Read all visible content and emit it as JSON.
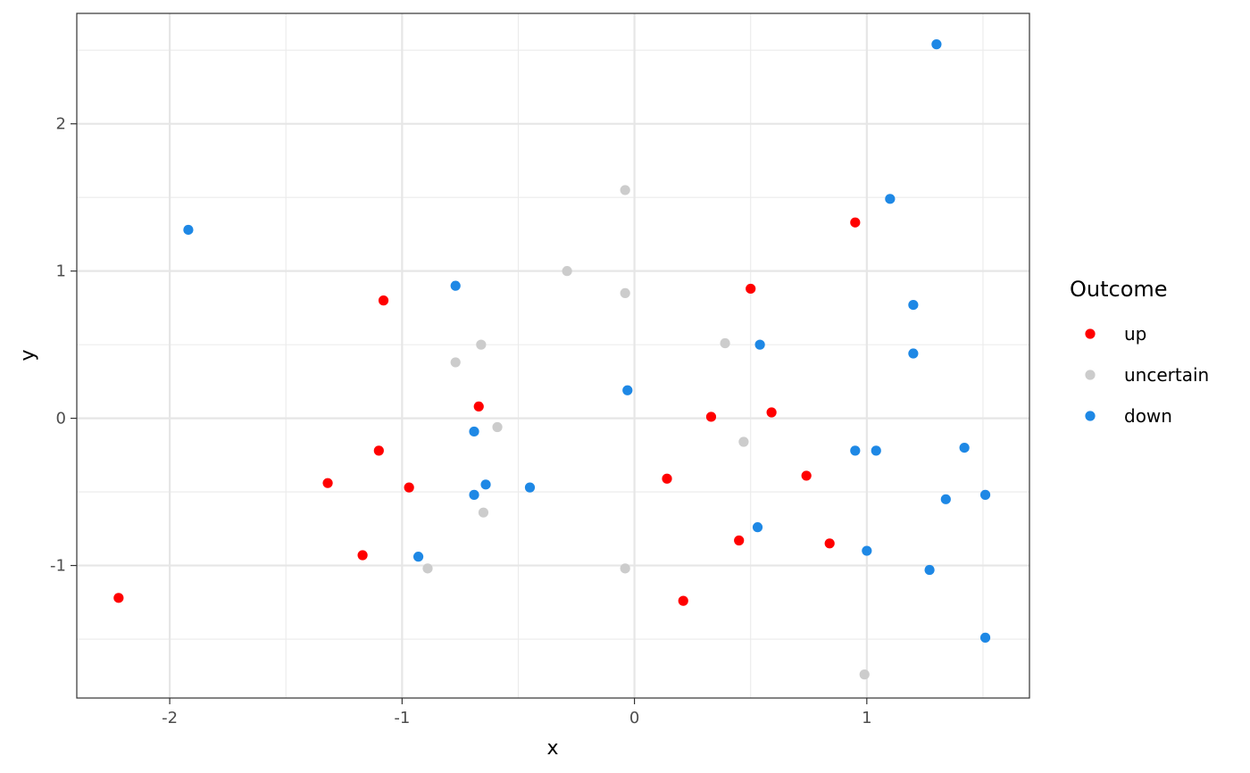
{
  "chart_data": {
    "type": "scatter",
    "xlabel": "x",
    "ylabel": "y",
    "xlim": [
      -2.4,
      1.7
    ],
    "ylim": [
      -1.9,
      2.75
    ],
    "x_ticks": [
      -2,
      -1,
      0,
      1
    ],
    "x_tick_labels": [
      "-2",
      "-1",
      "0",
      "1"
    ],
    "y_ticks": [
      -1,
      0,
      1,
      2
    ],
    "y_tick_labels": [
      "-1",
      "0",
      "1",
      "2"
    ],
    "grid": true,
    "legend": {
      "title": "Outcome",
      "placement": "right"
    },
    "series": [
      {
        "name": "up",
        "color": "#ff0000",
        "points": [
          [
            -2.22,
            -1.22
          ],
          [
            -1.32,
            -0.44
          ],
          [
            -1.17,
            -0.93
          ],
          [
            -1.1,
            -0.22
          ],
          [
            -1.08,
            0.8
          ],
          [
            -0.97,
            -0.47
          ],
          [
            -0.67,
            0.08
          ],
          [
            0.14,
            -0.41
          ],
          [
            0.21,
            -1.24
          ],
          [
            0.33,
            0.01
          ],
          [
            0.45,
            -0.83
          ],
          [
            0.5,
            0.88
          ],
          [
            0.59,
            0.04
          ],
          [
            0.74,
            -0.39
          ],
          [
            0.84,
            -0.85
          ],
          [
            0.95,
            1.33
          ]
        ]
      },
      {
        "name": "uncertain",
        "color": "#cccccc",
        "points": [
          [
            -0.89,
            -1.02
          ],
          [
            -0.77,
            0.38
          ],
          [
            -0.66,
            0.5
          ],
          [
            -0.65,
            -0.64
          ],
          [
            -0.59,
            -0.06
          ],
          [
            -0.29,
            1.0
          ],
          [
            -0.04,
            1.55
          ],
          [
            -0.04,
            0.85
          ],
          [
            -0.04,
            -1.02
          ],
          [
            0.39,
            0.51
          ],
          [
            0.47,
            -0.16
          ],
          [
            0.99,
            -1.74
          ]
        ]
      },
      {
        "name": "down",
        "color": "#1e88e5",
        "points": [
          [
            -1.92,
            1.28
          ],
          [
            -0.93,
            -0.94
          ],
          [
            -0.77,
            0.9
          ],
          [
            -0.69,
            -0.09
          ],
          [
            -0.69,
            -0.52
          ],
          [
            -0.64,
            -0.45
          ],
          [
            -0.45,
            -0.47
          ],
          [
            -0.03,
            0.19
          ],
          [
            0.53,
            -0.74
          ],
          [
            0.54,
            0.5
          ],
          [
            0.95,
            -0.22
          ],
          [
            1.0,
            -0.9
          ],
          [
            1.04,
            -0.22
          ],
          [
            1.1,
            1.49
          ],
          [
            1.2,
            0.77
          ],
          [
            1.2,
            0.44
          ],
          [
            1.27,
            -1.03
          ],
          [
            1.3,
            2.54
          ],
          [
            1.34,
            -0.55
          ],
          [
            1.42,
            -0.2
          ],
          [
            1.51,
            -0.52
          ],
          [
            1.51,
            -1.49
          ]
        ]
      }
    ]
  }
}
